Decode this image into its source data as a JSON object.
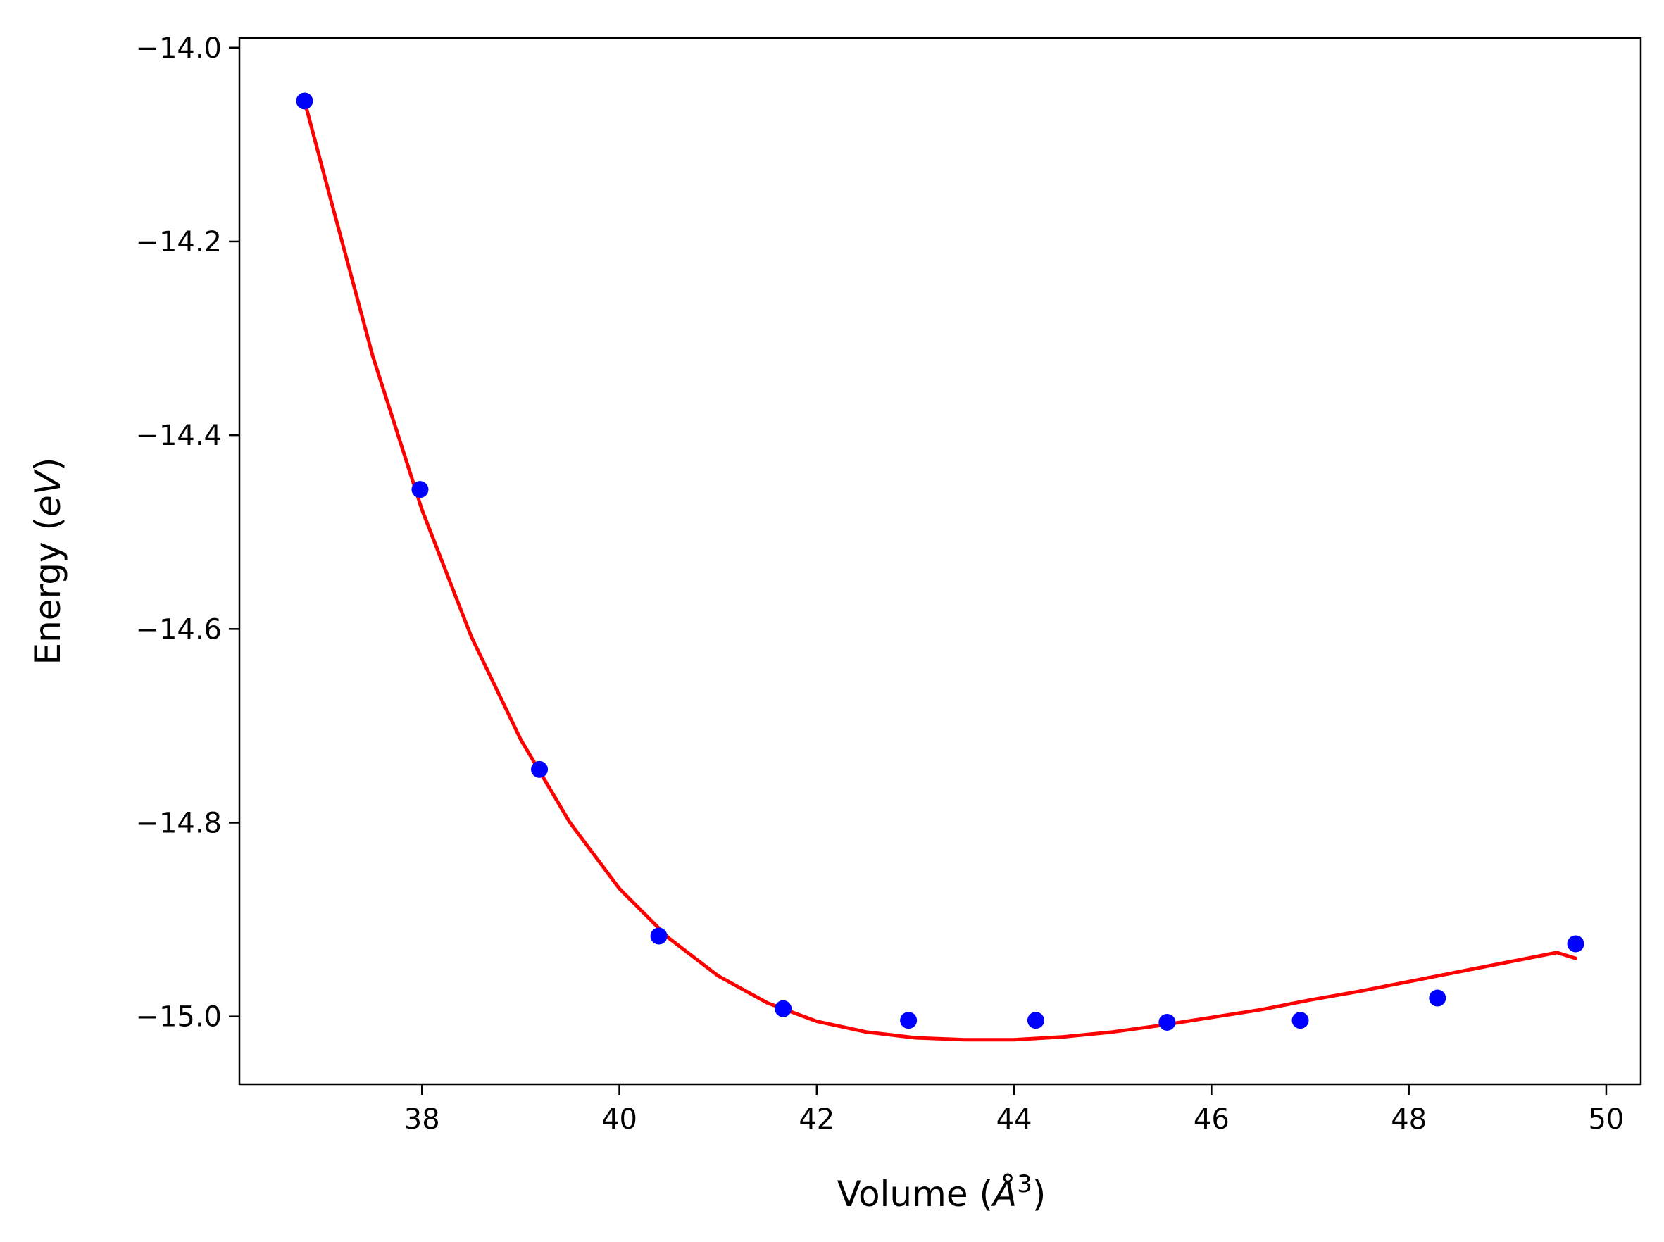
{
  "chart_data": {
    "type": "scatter",
    "xlabel": "Volume (",
    "xlabel_symbol": "Å",
    "xlabel_power": "3",
    "xlabel_close": ")",
    "ylabel": "Energy (",
    "ylabel_unit": "eV",
    "ylabel_close": ")",
    "xlim": [
      36.15,
      50.35
    ],
    "ylim": [
      -15.07,
      -13.99
    ],
    "x_ticks": [
      38,
      40,
      42,
      44,
      46,
      48,
      50
    ],
    "x_tick_labels": [
      "38",
      "40",
      "42",
      "44",
      "46",
      "48",
      "50"
    ],
    "y_ticks": [
      -14.0,
      -14.2,
      -14.4,
      -14.6,
      -14.8,
      -15.0
    ],
    "y_tick_labels": [
      "−14.0",
      "−14.2",
      "−14.4",
      "−14.6",
      "−14.8",
      "−15.0"
    ],
    "grid": false,
    "legend": "none",
    "series": [
      {
        "kind": "scatter",
        "color": "#0000ff",
        "x": [
          36.81,
          37.98,
          39.19,
          40.4,
          41.66,
          42.93,
          44.22,
          45.55,
          46.9,
          48.29,
          49.69
        ],
        "y": [
          -14.055,
          -14.456,
          -14.745,
          -14.917,
          -14.992,
          -15.004,
          -15.004,
          -15.006,
          -15.004,
          -14.981,
          -14.925
        ]
      },
      {
        "kind": "line",
        "color": "#ff0000",
        "x": [
          36.81,
          37.0,
          37.5,
          38.0,
          38.5,
          39.0,
          39.5,
          40.0,
          40.5,
          41.0,
          41.5,
          42.0,
          42.5,
          43.0,
          43.5,
          44.0,
          44.5,
          45.0,
          45.5,
          46.0,
          46.5,
          47.0,
          47.5,
          48.0,
          48.5,
          49.0,
          49.5,
          49.69
        ],
        "y": [
          -14.055,
          -14.128,
          -14.318,
          -14.477,
          -14.608,
          -14.714,
          -14.8,
          -14.868,
          -14.919,
          -14.958,
          -14.986,
          -15.005,
          -15.016,
          -15.022,
          -15.024,
          -15.024,
          -15.021,
          -15.016,
          -15.009,
          -15.001,
          -14.993,
          -14.983,
          -14.974,
          -14.964,
          -14.954,
          -14.944,
          -14.934,
          -14.94
        ]
      }
    ]
  }
}
